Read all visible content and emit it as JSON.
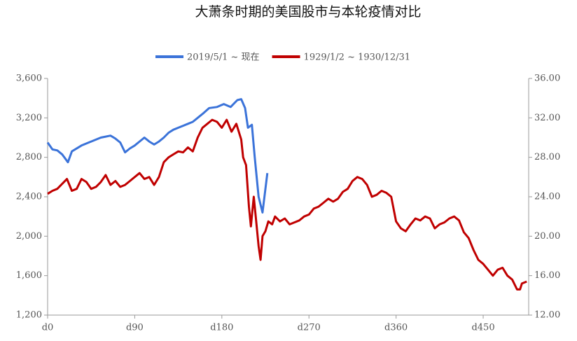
{
  "chart_data": {
    "type": "line",
    "title": "大萧条时期的美国股市与本轮疫情对比",
    "xlim": [
      0,
      497
    ],
    "xticks": [
      {
        "value": 0,
        "label": "d0"
      },
      {
        "value": 90,
        "label": "d90"
      },
      {
        "value": 180,
        "label": "d180"
      },
      {
        "value": 270,
        "label": "d270"
      },
      {
        "value": 360,
        "label": "d360"
      },
      {
        "value": 450,
        "label": "d450"
      }
    ],
    "ylim": [
      1200,
      3600
    ],
    "yticks": [
      {
        "value": 1200,
        "label": "1,200"
      },
      {
        "value": 1600,
        "label": "1,600"
      },
      {
        "value": 2000,
        "label": "2,000"
      },
      {
        "value": 2400,
        "label": "2,400"
      },
      {
        "value": 2800,
        "label": "2,800"
      },
      {
        "value": 3200,
        "label": "3,200"
      },
      {
        "value": 3600,
        "label": "3,600"
      }
    ],
    "y2lim": [
      12,
      36
    ],
    "y2ticks": [
      {
        "value": 12,
        "label": "12.00"
      },
      {
        "value": 16,
        "label": "16.00"
      },
      {
        "value": 20,
        "label": "20.00"
      },
      {
        "value": 24,
        "label": "24.00"
      },
      {
        "value": 28,
        "label": "28.00"
      },
      {
        "value": 32,
        "label": "32.00"
      },
      {
        "value": 36,
        "label": "36.00"
      }
    ],
    "legend": "top",
    "series": [
      {
        "name": "2019/5/1 ~ 现在",
        "color": "#3b73d9",
        "axis": "y",
        "x": [
          0,
          5,
          10,
          15,
          21,
          25,
          35,
          45,
          55,
          60,
          65,
          70,
          75,
          80,
          85,
          90,
          95,
          100,
          105,
          110,
          115,
          120,
          125,
          130,
          135,
          140,
          145,
          150,
          155,
          160,
          167,
          175,
          182,
          189,
          196,
          200,
          204,
          207,
          211,
          214,
          218,
          222,
          227
        ],
        "values": [
          2950,
          2880,
          2870,
          2830,
          2750,
          2860,
          2920,
          2960,
          3000,
          3010,
          3020,
          2990,
          2950,
          2850,
          2890,
          2920,
          2960,
          3000,
          2960,
          2930,
          2960,
          3000,
          3050,
          3080,
          3100,
          3120,
          3140,
          3160,
          3200,
          3240,
          3300,
          3310,
          3340,
          3310,
          3380,
          3390,
          3300,
          3100,
          3130,
          2800,
          2400,
          2240,
          2640
        ]
      },
      {
        "name": "1929/1/2 ~ 1930/12/31",
        "color": "#c00000",
        "axis": "y2",
        "x": [
          0,
          5,
          10,
          20,
          25,
          30,
          35,
          40,
          45,
          50,
          55,
          60,
          65,
          70,
          75,
          80,
          85,
          90,
          95,
          100,
          105,
          110,
          115,
          120,
          125,
          130,
          135,
          140,
          145,
          150,
          155,
          160,
          165,
          170,
          175,
          180,
          185,
          190,
          195,
          200,
          202,
          205,
          208,
          210,
          213,
          215,
          218,
          220,
          222,
          225,
          228,
          232,
          235,
          240,
          245,
          250,
          255,
          260,
          265,
          270,
          275,
          280,
          285,
          290,
          295,
          300,
          305,
          310,
          315,
          320,
          325,
          330,
          335,
          340,
          345,
          350,
          355,
          360,
          365,
          370,
          375,
          380,
          385,
          390,
          395,
          400,
          405,
          410,
          415,
          420,
          425,
          430,
          435,
          440,
          445,
          450,
          455,
          460,
          465,
          470,
          475,
          480,
          485,
          488,
          490,
          495
        ],
        "values": [
          24.3,
          24.6,
          24.8,
          25.8,
          24.6,
          24.8,
          25.8,
          25.5,
          24.8,
          25.0,
          25.5,
          26.2,
          25.2,
          25.6,
          25.0,
          25.2,
          25.6,
          26.0,
          26.4,
          25.8,
          26.0,
          25.2,
          26.0,
          27.5,
          28.0,
          28.3,
          28.6,
          28.5,
          29.0,
          28.6,
          30.0,
          31.0,
          31.4,
          31.8,
          31.6,
          31.0,
          31.8,
          30.6,
          31.4,
          29.8,
          28.0,
          27.2,
          23.0,
          21.0,
          24.0,
          22.0,
          19.0,
          17.6,
          20.0,
          20.5,
          21.5,
          21.2,
          22.0,
          21.5,
          21.8,
          21.2,
          21.4,
          21.6,
          22.0,
          22.2,
          22.8,
          23.0,
          23.4,
          23.8,
          23.5,
          23.8,
          24.5,
          24.8,
          25.6,
          26.0,
          25.8,
          25.2,
          24.0,
          24.2,
          24.6,
          24.4,
          24.0,
          21.5,
          20.8,
          20.5,
          21.2,
          21.8,
          21.6,
          22.0,
          21.8,
          20.8,
          21.2,
          21.4,
          21.8,
          22.0,
          21.6,
          20.4,
          19.8,
          18.6,
          17.6,
          17.2,
          16.6,
          16.0,
          16.6,
          16.8,
          16.0,
          15.6,
          14.6,
          14.6,
          15.2,
          15.4
        ]
      }
    ]
  }
}
